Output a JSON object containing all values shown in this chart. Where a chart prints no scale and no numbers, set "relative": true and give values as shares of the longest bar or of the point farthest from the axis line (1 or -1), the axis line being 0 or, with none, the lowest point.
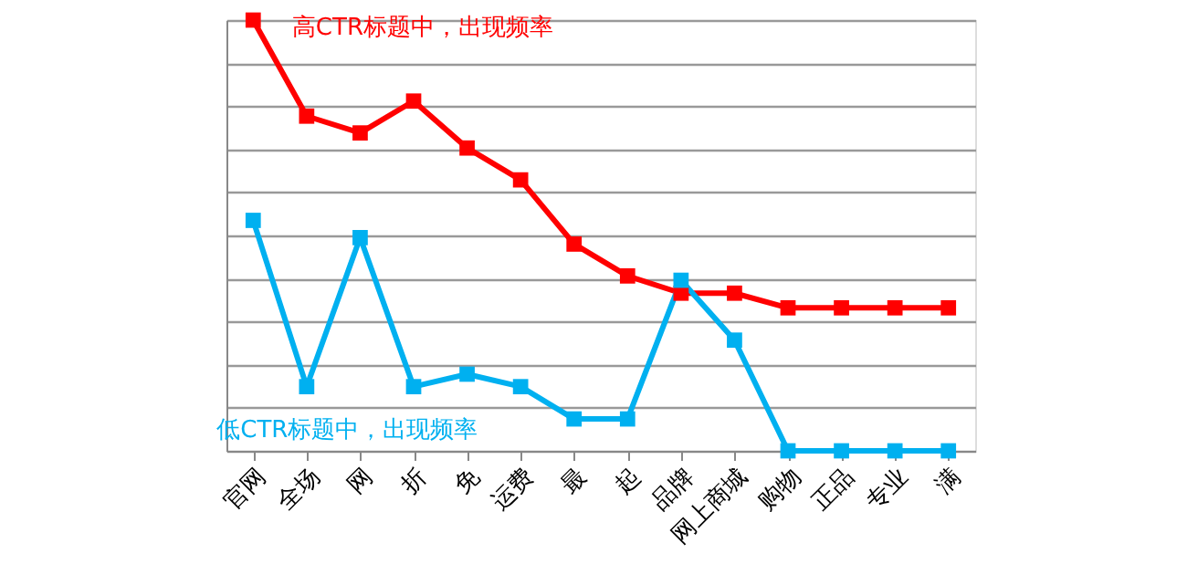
{
  "chart_data": {
    "type": "line",
    "relative": true,
    "grid": "y",
    "marker": "square",
    "line_style": "solid",
    "categories": [
      "官网",
      "全场",
      "网",
      "折",
      "免",
      "运费",
      "最",
      "起",
      "品牌",
      "网上商城",
      "购物",
      "正品",
      "专业",
      "满"
    ],
    "series": [
      {
        "name": "高CTR标题中，出现频率",
        "color": "#ff0000",
        "values": [
          1,
          0.777,
          0.738,
          0.812,
          0.703,
          0.629,
          0.48,
          0.406,
          0.366,
          0.366,
          0.332,
          0.332,
          0.332,
          0.332
        ]
      },
      {
        "name": "低CTR标题中，出现频率",
        "color": "#00b0f0",
        "values": [
          0.535,
          0.149,
          0.495,
          0.149,
          0.178,
          0.149,
          0.074,
          0.074,
          0.396,
          0.257,
          0,
          0,
          0,
          0
        ]
      }
    ]
  }
}
